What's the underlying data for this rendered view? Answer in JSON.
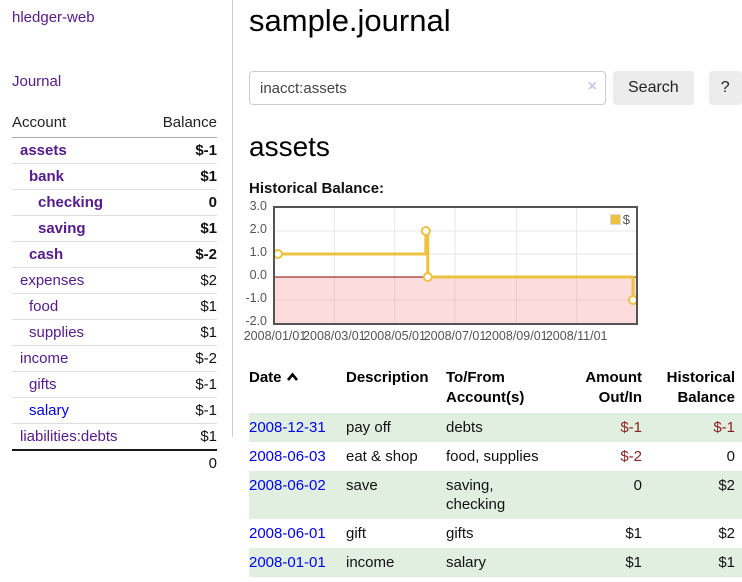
{
  "colors": {
    "purple_link": "#551a8b",
    "blue_link": "#0000ee",
    "negative_strong": "#7d0c0c",
    "negative_soft": "#c0616d",
    "table_negative": "#8b1e1e",
    "row_stripe_green": "#e0efe0",
    "chart_line_gold": "#edc240",
    "chart_negative_fill": "#f8dada",
    "chart_zero_line": "#8b0000",
    "axis_text": "#545454"
  },
  "sidebar": {
    "brand": "hledger-web",
    "journal_link": "Journal",
    "accounts": {
      "headers": [
        "Account",
        "Balance"
      ],
      "rows": [
        {
          "label": "assets",
          "depth": 1,
          "bold": true,
          "balance": "$-1"
        },
        {
          "label": "bank",
          "depth": 2,
          "bold": true,
          "balance": "$1"
        },
        {
          "label": "checking",
          "depth": 3,
          "bold": true,
          "balance": "0"
        },
        {
          "label": "saving",
          "depth": 3,
          "bold": true,
          "balance": "$1"
        },
        {
          "label": "cash",
          "depth": 2,
          "bold": true,
          "balance": "$-2"
        },
        {
          "label": "expenses",
          "depth": 1,
          "bold": false,
          "balance": "$2"
        },
        {
          "label": "food",
          "depth": 2,
          "bold": false,
          "balance": "$1"
        },
        {
          "label": "supplies",
          "depth": 2,
          "bold": false,
          "balance": "$1"
        },
        {
          "label": "income",
          "depth": 1,
          "bold": false,
          "balance": "$-2"
        },
        {
          "label": "gifts",
          "depth": 2,
          "bold": false,
          "balance": "$-1"
        },
        {
          "label": "salary",
          "depth": 2,
          "bold": false,
          "balance": "$-1",
          "unvisited": true
        },
        {
          "label": "liabilities:debts",
          "depth": 1,
          "bold": false,
          "balance": "$1"
        }
      ],
      "total": "0"
    }
  },
  "main": {
    "title": "sample.journal",
    "search": {
      "value": "inacct:assets",
      "clear_icon": "×",
      "button": "Search",
      "help": "?"
    },
    "account_heading": "assets"
  },
  "chart_data": {
    "type": "line",
    "title": "Historical Balance:",
    "step": true,
    "series": [
      {
        "name": "$",
        "color": "#edc240",
        "points": [
          [
            "2008-01-01",
            1
          ],
          [
            "2008-06-01",
            2
          ],
          [
            "2008-06-03",
            0
          ],
          [
            "2008-12-31",
            -1
          ]
        ]
      }
    ],
    "xlim": [
      "2008-01-01",
      "2008-12-31"
    ],
    "ylim": [
      -2,
      3
    ],
    "x_ticks": [
      "2008/01/01",
      "2008/03/01",
      "2008/05/01",
      "2008/07/01",
      "2008/09/01",
      "2008/11/01"
    ],
    "y_ticks": [
      "3.0",
      "2.0",
      "1.0",
      "0.0",
      "-1.0",
      "-2.0"
    ],
    "grid": true,
    "legend_position": "top-right",
    "negative_region_shaded": true
  },
  "transactions": {
    "headers": {
      "date": "Date",
      "description": "Description",
      "accounts": "To/From\nAccount(s)",
      "amount": "Amount\nOut/In",
      "balance": "Historical\nBalance"
    },
    "rows": [
      {
        "date": "2008-12-31",
        "description": "pay off",
        "accounts": "debts",
        "amount": "$-1",
        "balance": "$-1"
      },
      {
        "date": "2008-06-03",
        "description": "eat & shop",
        "accounts": "food, supplies",
        "amount": "$-2",
        "balance": "0"
      },
      {
        "date": "2008-06-02",
        "description": "save",
        "accounts": "saving,\nchecking",
        "amount": "0",
        "balance": "$2"
      },
      {
        "date": "2008-06-01",
        "description": "gift",
        "accounts": "gifts",
        "amount": "$1",
        "balance": "$2"
      },
      {
        "date": "2008-01-01",
        "description": "income",
        "accounts": "salary",
        "amount": "$1",
        "balance": "$1"
      }
    ]
  }
}
